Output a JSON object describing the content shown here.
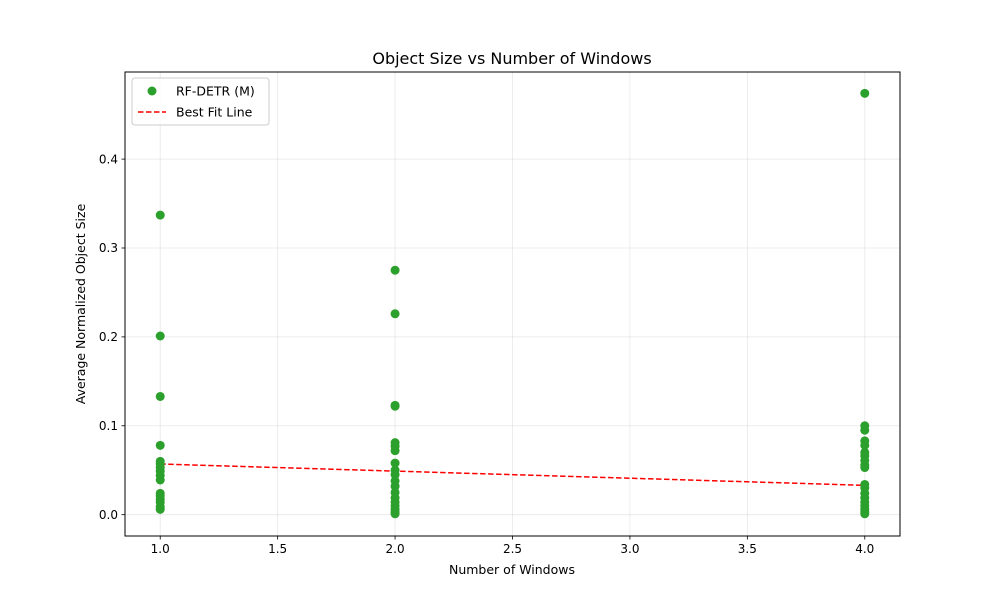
{
  "chart_data": {
    "type": "scatter",
    "title": "Object Size vs Number of Windows",
    "xlabel": "Number of Windows",
    "ylabel": "Average Normalized Object Size",
    "xlim": [
      0.85,
      4.15
    ],
    "ylim": [
      -0.024,
      0.498
    ],
    "xticks": [
      1.0,
      1.5,
      2.0,
      2.5,
      3.0,
      3.5,
      4.0
    ],
    "xtick_labels": [
      "1.0",
      "1.5",
      "2.0",
      "2.5",
      "3.0",
      "3.5",
      "4.0"
    ],
    "yticks": [
      0.0,
      0.1,
      0.2,
      0.3,
      0.4
    ],
    "ytick_labels": [
      "0.0",
      "0.1",
      "0.2",
      "0.3",
      "0.4"
    ],
    "grid": true,
    "legend_position": "top-left",
    "series": [
      {
        "name": "RF-DETR (M)",
        "kind": "scatter",
        "color": "#2ca02c",
        "points": [
          [
            1,
            0.337
          ],
          [
            1,
            0.201
          ],
          [
            1,
            0.133
          ],
          [
            1,
            0.078
          ],
          [
            1,
            0.06
          ],
          [
            1,
            0.057
          ],
          [
            1,
            0.053
          ],
          [
            1,
            0.049
          ],
          [
            1,
            0.044
          ],
          [
            1,
            0.039
          ],
          [
            1,
            0.024
          ],
          [
            1,
            0.021
          ],
          [
            1,
            0.017
          ],
          [
            1,
            0.014
          ],
          [
            1,
            0.009
          ],
          [
            1,
            0.006
          ],
          [
            2,
            0.275
          ],
          [
            2,
            0.226
          ],
          [
            2,
            0.123
          ],
          [
            2,
            0.122
          ],
          [
            2,
            0.081
          ],
          [
            2,
            0.077
          ],
          [
            2,
            0.072
          ],
          [
            2,
            0.058
          ],
          [
            2,
            0.05
          ],
          [
            2,
            0.045
          ],
          [
            2,
            0.038
          ],
          [
            2,
            0.032
          ],
          [
            2,
            0.025
          ],
          [
            2,
            0.019
          ],
          [
            2,
            0.014
          ],
          [
            2,
            0.01
          ],
          [
            2,
            0.006
          ],
          [
            2,
            0.003
          ],
          [
            2,
            0.001
          ],
          [
            4,
            0.474
          ],
          [
            4,
            0.1
          ],
          [
            4,
            0.095
          ],
          [
            4,
            0.083
          ],
          [
            4,
            0.078
          ],
          [
            4,
            0.07
          ],
          [
            4,
            0.066
          ],
          [
            4,
            0.061
          ],
          [
            4,
            0.056
          ],
          [
            4,
            0.053
          ],
          [
            4,
            0.034
          ],
          [
            4,
            0.03
          ],
          [
            4,
            0.024
          ],
          [
            4,
            0.019
          ],
          [
            4,
            0.014
          ],
          [
            4,
            0.01
          ],
          [
            4,
            0.006
          ],
          [
            4,
            0.003
          ],
          [
            4,
            0.001
          ]
        ]
      },
      {
        "name": "Best Fit Line",
        "kind": "line",
        "color": "#ff0000",
        "dash": "dashed",
        "x": [
          1,
          4
        ],
        "y": [
          0.057,
          0.033
        ]
      }
    ]
  }
}
